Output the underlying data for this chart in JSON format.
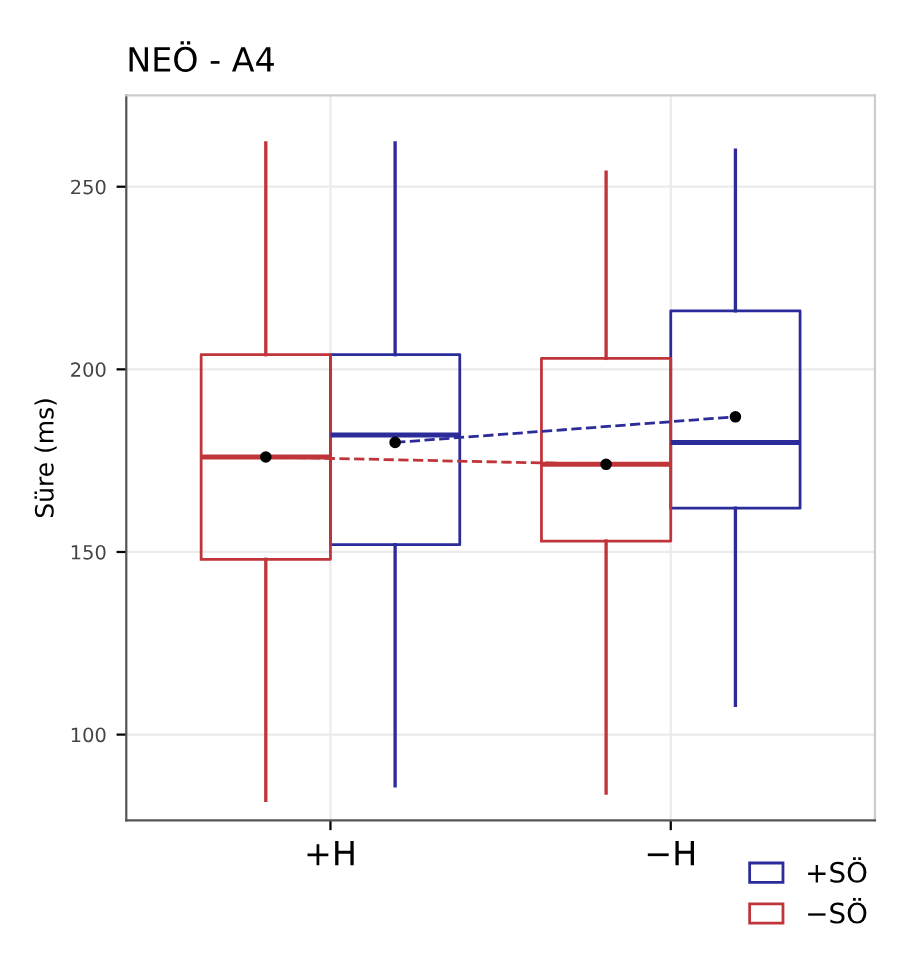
{
  "chart_data": {
    "type": "box",
    "title": "NEÖ - A4",
    "ylabel": "Süre (ms)",
    "categories": [
      "+H",
      "−H"
    ],
    "series": [
      {
        "name": "+SÖ",
        "color": "#2b2b9a",
        "boxes": [
          {
            "low": 86,
            "q1": 152,
            "median": 182,
            "q3": 204,
            "high": 262,
            "mean": 180
          },
          {
            "low": 108,
            "q1": 162,
            "median": 180,
            "q3": 216,
            "high": 260,
            "mean": 187
          }
        ]
      },
      {
        "name": "−SÖ",
        "color": "#c0353a",
        "boxes": [
          {
            "low": 82,
            "q1": 148,
            "median": 176,
            "q3": 204,
            "high": 262,
            "mean": 176
          },
          {
            "low": 84,
            "q1": 153,
            "median": 174,
            "q3": 203,
            "high": 254,
            "mean": 174
          }
        ]
      },
      {
        "type": "line",
        "color": "#2b2b9a",
        "line_style": "dashed",
        "values": [
          180,
          187
        ]
      },
      {
        "type": "line",
        "color": "#c0353a",
        "line_style": "dashed",
        "values": [
          176,
          174
        ]
      }
    ],
    "ylim": [
      76.5,
      275
    ],
    "yticks": [
      100,
      150,
      200,
      250
    ],
    "grid": true,
    "legend": "bottom right"
  }
}
